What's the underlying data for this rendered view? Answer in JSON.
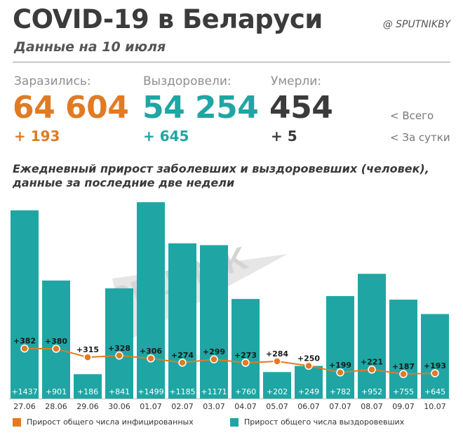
{
  "header": {
    "title": "COVID-19 в Беларуси",
    "handle": "@ SPUTNIKBY",
    "subtitle": "Данные на 10 июля"
  },
  "stats": {
    "infected": {
      "label": "Заразились:",
      "total": "64 604",
      "daily": "+ 193"
    },
    "recovered": {
      "label": "Выздоровели:",
      "total": "54 254",
      "daily": "+ 645"
    },
    "deaths": {
      "label": "Умерли:",
      "total": "454",
      "daily": "+ 5"
    }
  },
  "stats_legend": {
    "total": "<  Всего",
    "daily": "<  За сутки"
  },
  "colors": {
    "infected": "#e07b24",
    "recovered": "#1fa6a4",
    "deaths": "#3b3b3b",
    "watermark": "#e6e6e6"
  },
  "watermark": "SPUTNIK",
  "chart_data": {
    "type": "bar",
    "title_line1": "Ежедневный прирост заболевших и выздоровевших (человек),",
    "title_line2": "данные за последние две недели",
    "categories": [
      "27.06",
      "28.06",
      "29.06",
      "30.06",
      "01.07",
      "02.07",
      "03.07",
      "04.07",
      "05.07",
      "06.07",
      "07.07",
      "08.07",
      "09.07",
      "10.07"
    ],
    "series": [
      {
        "name": "Прирост общего числа выздоровевших",
        "kind": "bar",
        "values": [
          1437,
          901,
          186,
          841,
          1499,
          1185,
          1171,
          760,
          202,
          249,
          782,
          952,
          755,
          645
        ],
        "labels": [
          "+1437",
          "+901",
          "+186",
          "+841",
          "+1499",
          "+1185",
          "+1171",
          "+760",
          "+202",
          "+249",
          "+782",
          "+952",
          "+755",
          "+645"
        ]
      },
      {
        "name": "Прирост общего числа инфицированных",
        "kind": "line",
        "values": [
          382,
          380,
          315,
          328,
          306,
          274,
          299,
          273,
          284,
          250,
          199,
          221,
          187,
          193
        ],
        "labels": [
          "+382",
          "+380",
          "+315",
          "+328",
          "+306",
          "+274",
          "+299",
          "+273",
          "+284",
          "+250",
          "+199",
          "+221",
          "+187",
          "+193"
        ]
      }
    ],
    "ylim": [
      0,
      1500
    ],
    "grid": false,
    "legend_position": "bottom"
  }
}
